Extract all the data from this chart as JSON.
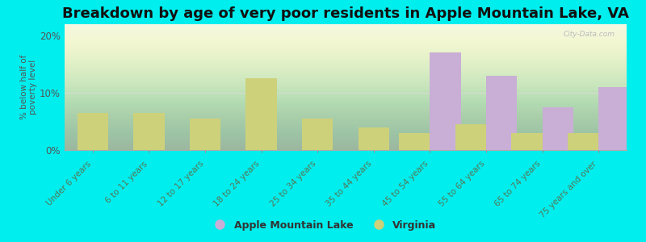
{
  "title": "Breakdown by age of very poor residents in Apple Mountain Lake, VA",
  "ylabel": "% below half of\npoverty level",
  "categories": [
    "Under 6 years",
    "6 to 11 years",
    "12 to 17 years",
    "18 to 24 years",
    "25 to 34 years",
    "35 to 44 years",
    "45 to 54 years",
    "55 to 64 years",
    "65 to 74 years",
    "75 years and over"
  ],
  "apple_mountain_lake": [
    0,
    0,
    0,
    0,
    0,
    0,
    17.0,
    13.0,
    7.5,
    11.0
  ],
  "virginia": [
    6.5,
    6.5,
    5.5,
    12.5,
    5.5,
    4.0,
    3.0,
    4.5,
    3.0,
    3.0
  ],
  "apple_color": "#c9aed6",
  "virginia_color": "#cdd17a",
  "background_color": "#00eeee",
  "ylim": [
    0,
    22
  ],
  "yticks": [
    0,
    10,
    20
  ],
  "ytick_labels": [
    "0%",
    "10%",
    "20%"
  ],
  "bar_width": 0.55,
  "title_fontsize": 13,
  "legend_labels": [
    "Apple Mountain Lake",
    "Virginia"
  ],
  "watermark": "City-Data.com"
}
